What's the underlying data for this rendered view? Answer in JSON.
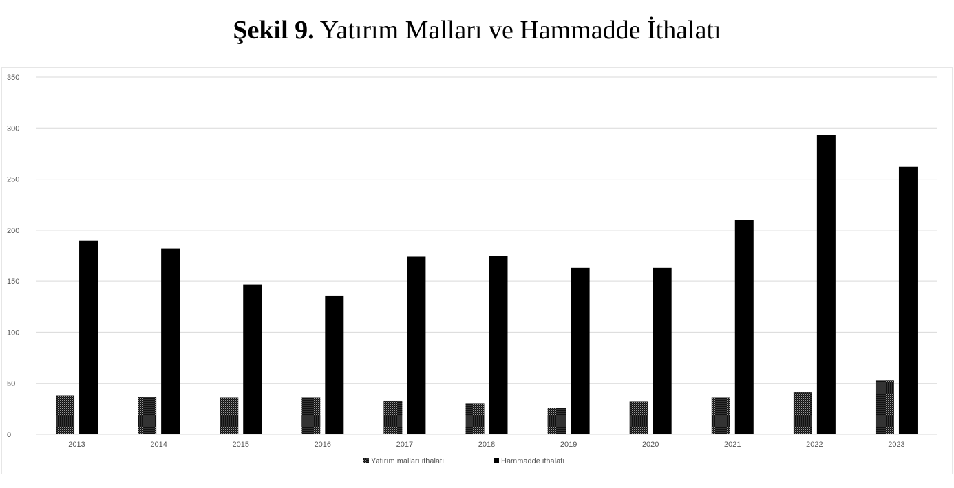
{
  "figure": {
    "title_prefix": "Şekil 9.",
    "title_text": "Yatırım Malları ve Hammadde İthalatı"
  },
  "chart_data": {
    "type": "bar",
    "categories": [
      "2013",
      "2014",
      "2015",
      "2016",
      "2017",
      "2018",
      "2019",
      "2020",
      "2021",
      "2022",
      "2023"
    ],
    "series": [
      {
        "name": "Yatırım malları ithalatı",
        "values": [
          38,
          37,
          36,
          36,
          33,
          30,
          26,
          32,
          36,
          41,
          53
        ],
        "color": "#222222",
        "pattern": "dotted"
      },
      {
        "name": "Hammadde ithalatı",
        "values": [
          190,
          182,
          147,
          136,
          174,
          175,
          163,
          163,
          210,
          293,
          262
        ],
        "color": "#000000",
        "pattern": "solid"
      }
    ],
    "ylim": [
      0,
      350
    ],
    "yticks": [
      0,
      50,
      100,
      150,
      200,
      250,
      300,
      350
    ],
    "grid": true,
    "legend_position": "bottom-center"
  }
}
